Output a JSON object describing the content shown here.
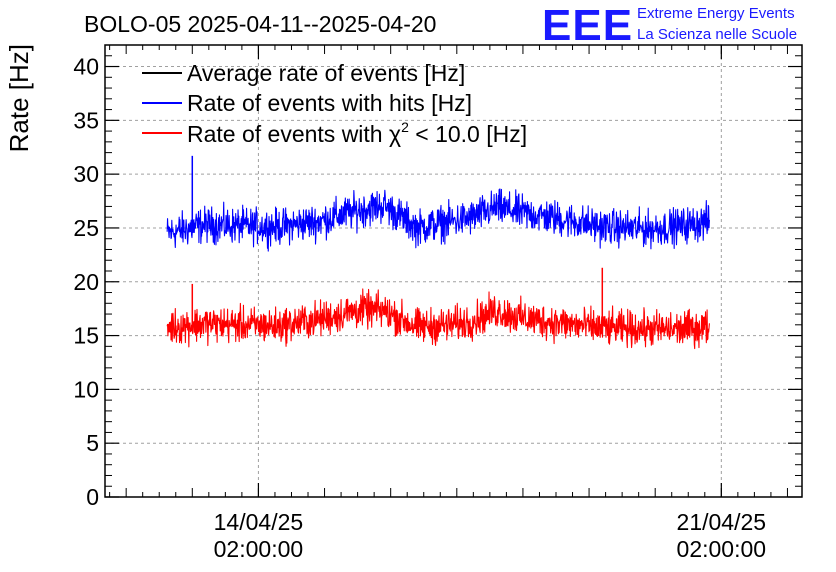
{
  "logo": {
    "mark": "EEE",
    "line1": "Extreme Energy Events",
    "line2": "La Scienza nelle Scuole",
    "color": "#1a1aff"
  },
  "chart_data": {
    "type": "line",
    "title": "BOLO-05 2025-04-11--2025-04-20",
    "ylabel": "Rate [Hz]",
    "xlabel": "",
    "ylim": [
      0,
      42
    ],
    "yticks": [
      0,
      5,
      10,
      15,
      20,
      25,
      30,
      35,
      40
    ],
    "xlim_days": [
      -2.32,
      8.22
    ],
    "xticks": [
      {
        "day": 0,
        "date": "14/04/25",
        "time": "02:00:00"
      },
      {
        "day": 7,
        "date": "21/04/25",
        "time": "02:00:00"
      }
    ],
    "grid": true,
    "legend": {
      "position": "top-left",
      "entries": [
        {
          "label": "Average rate of events [Hz]",
          "color": "#000000",
          "series": "avg"
        },
        {
          "label": "Rate of events with hits [Hz]",
          "color": "#0000ff",
          "series": "hits"
        },
        {
          "label_pre": "Rate of events with ",
          "label_chi": "χ",
          "label_sup": "2",
          "label_post": " < 10.0 [Hz]",
          "color": "#ff0000",
          "series": "chi2"
        }
      ]
    },
    "series": [
      {
        "name": "Rate of events with hits [Hz]",
        "key": "hits",
        "color": "#0000ff",
        "x_start": -1.38,
        "x_end": 6.82,
        "band": 1.6,
        "baseline_x": [
          -1.38,
          -0.8,
          -0.3,
          0.3,
          0.9,
          1.2,
          1.55,
          1.9,
          2.4,
          2.9,
          3.2,
          3.6,
          4.0,
          4.5,
          5.2,
          5.9,
          6.4,
          6.82
        ],
        "baseline_y": [
          24.5,
          25.3,
          25.2,
          25.1,
          25.6,
          26.1,
          26.7,
          27.1,
          25.0,
          25.6,
          25.9,
          26.9,
          26.4,
          25.9,
          25.1,
          24.9,
          25.2,
          25.6
        ],
        "spikes": [
          {
            "x": -1.0,
            "y": 31.7
          }
        ]
      },
      {
        "name": "Rate of events with χ2 < 10.0 [Hz]",
        "key": "chi2",
        "color": "#ff0000",
        "x_start": -1.38,
        "x_end": 6.82,
        "band": 1.6,
        "baseline_x": [
          -1.38,
          -0.8,
          -0.3,
          0.3,
          0.9,
          1.2,
          1.55,
          1.9,
          2.4,
          2.9,
          3.2,
          3.6,
          4.0,
          4.5,
          5.2,
          5.9,
          6.4,
          6.82
        ],
        "baseline_y": [
          15.8,
          16.1,
          16.0,
          15.9,
          16.5,
          16.9,
          17.4,
          17.3,
          15.8,
          16.0,
          16.3,
          17.3,
          16.6,
          16.2,
          15.7,
          15.6,
          15.6,
          15.8
        ],
        "spikes": [
          {
            "x": -1.0,
            "y": 19.8
          },
          {
            "x": 5.2,
            "y": 21.3
          }
        ]
      }
    ]
  }
}
